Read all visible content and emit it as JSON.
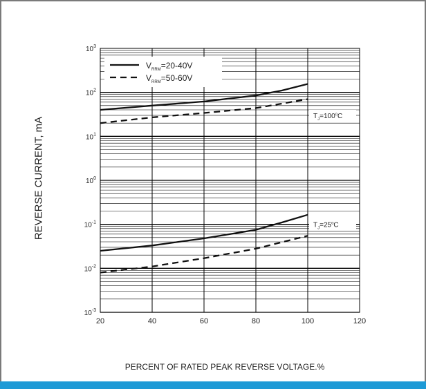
{
  "colors": {
    "accent_bar": "#1e9ad6",
    "frame": "#7a7a7a",
    "line": "#111111"
  },
  "chart_data": {
    "type": "line",
    "ylabel": "REVERSE CURRENT, mA",
    "xlabel": "PERCENT OF RATED PEAK REVERSE VOLTAGE.%",
    "xlim": [
      20,
      120
    ],
    "ylim": [
      0.001,
      1000
    ],
    "yscale": "log",
    "grid": true,
    "x_ticks": [
      "20",
      "40",
      "60",
      "80",
      "100",
      "120"
    ],
    "y_tick_base": "10",
    "y_tick_exps": [
      "-3",
      "-2",
      "-1",
      "0",
      "1",
      "2",
      "3"
    ],
    "legend_position": "top-left",
    "series": [
      {
        "name_main": "V",
        "name_sub": "RRM",
        "name_tail": "=20-40V",
        "dash": "solid",
        "group": "100C",
        "x": [
          20,
          40,
          60,
          80,
          90,
          100
        ],
        "y": [
          40,
          50,
          62,
          85,
          110,
          155
        ]
      },
      {
        "name_main": "V",
        "name_sub": "RRM",
        "name_tail": "=50-60V",
        "dash": "dashed",
        "group": "100C",
        "x": [
          20,
          40,
          60,
          80,
          100
        ],
        "y": [
          20,
          27,
          34,
          44,
          70
        ]
      },
      {
        "name_main": "V",
        "name_sub": "RRM",
        "name_tail": "=20-40V",
        "dash": "solid",
        "group": "25C",
        "x": [
          20,
          40,
          60,
          80,
          90,
          100
        ],
        "y": [
          0.025,
          0.033,
          0.048,
          0.075,
          0.11,
          0.165
        ]
      },
      {
        "name_main": "V",
        "name_sub": "RRM",
        "name_tail": "=50-60V",
        "dash": "dashed",
        "group": "25C",
        "x": [
          20,
          40,
          60,
          80,
          100
        ],
        "y": [
          0.008,
          0.011,
          0.017,
          0.028,
          0.055
        ]
      }
    ],
    "annotations": [
      {
        "main": "T",
        "sub": "J",
        "tail": "=100",
        "deg": "o",
        "end": "C",
        "x": 100,
        "y": 30
      },
      {
        "main": "T",
        "sub": "J",
        "tail": "=25",
        "deg": "o",
        "end": "C",
        "x": 100,
        "y": 0.1
      }
    ]
  }
}
